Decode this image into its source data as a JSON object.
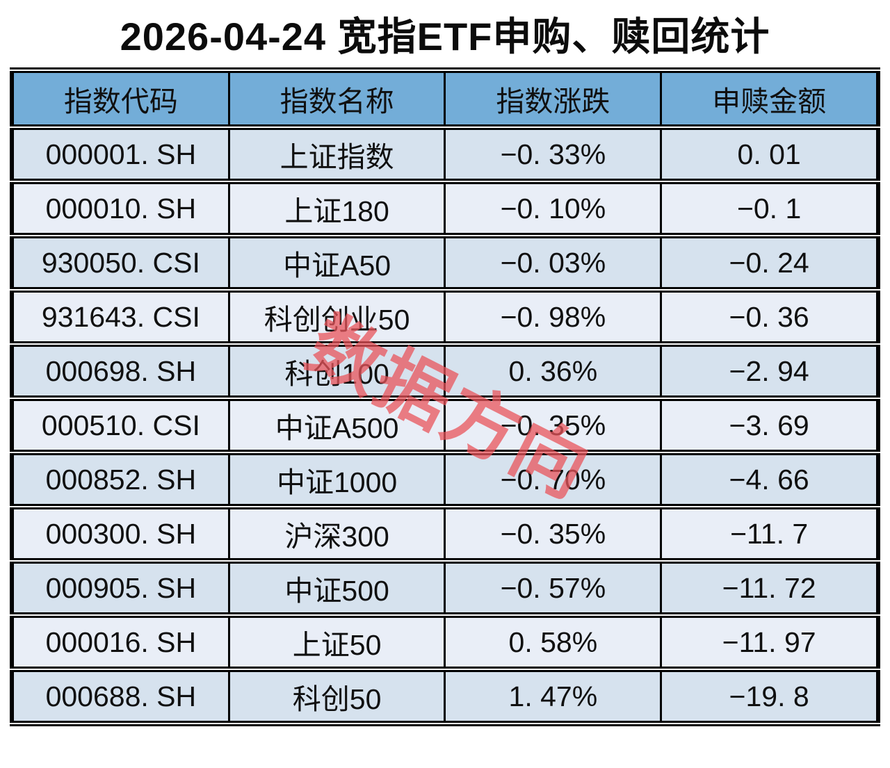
{
  "title": "2026-04-24 宽指ETF申购、赎回统计",
  "watermark": "数据方向",
  "colors": {
    "header_bg": "#73add8",
    "row_odd_bg": "#d6e2ee",
    "row_even_bg": "#e9eef7",
    "border": "#000000",
    "text": "#111111",
    "watermark_red": "#e8545b"
  },
  "table": {
    "headers": [
      "指数代码",
      "指数名称",
      "指数涨跌",
      "申赎金额"
    ],
    "rows": [
      {
        "code": "000001.SH",
        "name": "上证指数",
        "change": "-0.33%",
        "amount": "0.01"
      },
      {
        "code": "000010.SH",
        "name": "上证180",
        "change": "-0.10%",
        "amount": "-0.1"
      },
      {
        "code": "930050.CSI",
        "name": "中证A50",
        "change": "-0.03%",
        "amount": "-0.24"
      },
      {
        "code": "931643.CSI",
        "name": "科创创业50",
        "change": "-0.98%",
        "amount": "-0.36"
      },
      {
        "code": "000698.SH",
        "name": "科创100",
        "change": "0.36%",
        "amount": "-2.94"
      },
      {
        "code": "000510.CSI",
        "name": "中证A500",
        "change": "-0.35%",
        "amount": "-3.69"
      },
      {
        "code": "000852.SH",
        "name": "中证1000",
        "change": "-0.70%",
        "amount": "-4.66"
      },
      {
        "code": "000300.SH",
        "name": "沪深300",
        "change": "-0.35%",
        "amount": "-11.7"
      },
      {
        "code": "000905.SH",
        "name": "中证500",
        "change": "-0.57%",
        "amount": "-11.72"
      },
      {
        "code": "000016.SH",
        "name": "上证50",
        "change": "0.58%",
        "amount": "-11.97"
      },
      {
        "code": "000688.SH",
        "name": "科创50",
        "change": "1.47%",
        "amount": "-19.8"
      }
    ]
  },
  "chart_data": {
    "type": "table",
    "title": "2026-04-24 宽指ETF申购、赎回统计",
    "columns": [
      "指数代码",
      "指数名称",
      "指数涨跌(%)",
      "申赎金额"
    ],
    "rows": [
      [
        "000001.SH",
        "上证指数",
        -0.33,
        0.01
      ],
      [
        "000010.SH",
        "上证180",
        -0.1,
        -0.1
      ],
      [
        "930050.CSI",
        "中证A50",
        -0.03,
        -0.24
      ],
      [
        "931643.CSI",
        "科创创业50",
        -0.98,
        -0.36
      ],
      [
        "000698.SH",
        "科创100",
        0.36,
        -2.94
      ],
      [
        "000510.CSI",
        "中证A500",
        -0.35,
        -3.69
      ],
      [
        "000852.SH",
        "中证1000",
        -0.7,
        -4.66
      ],
      [
        "000300.SH",
        "沪深300",
        -0.35,
        -11.7
      ],
      [
        "000905.SH",
        "中证500",
        -0.57,
        -11.72
      ],
      [
        "000016.SH",
        "上证50",
        0.58,
        -11.97
      ],
      [
        "000688.SH",
        "科创50",
        1.47,
        -19.8
      ]
    ],
    "sort": "申赎金额 descending",
    "legend_position": "none",
    "grid": true
  }
}
